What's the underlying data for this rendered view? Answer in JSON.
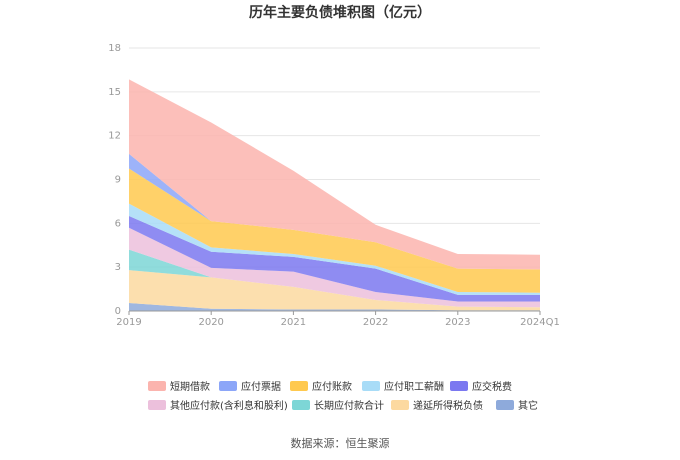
{
  "chart_data": {
    "type": "area",
    "stacked": true,
    "title": "历年主要负债堆积图（亿元）",
    "source_note": "数据来源：恒生聚源",
    "categories": [
      "2019",
      "2020",
      "2021",
      "2022",
      "2023",
      "2024Q1"
    ],
    "ylim": [
      0,
      18
    ],
    "yticks": [
      "0",
      "3",
      "6",
      "9",
      "12",
      "15",
      "18"
    ],
    "grid": true,
    "legend_position": "bottom",
    "series": [
      {
        "name": "其它",
        "color": "#8eaadb",
        "values": [
          0.55,
          0.15,
          0.1,
          0.1,
          0.05,
          0.05
        ]
      },
      {
        "name": "递延所得税负债",
        "color": "#fcd9a0",
        "values": [
          2.25,
          2.15,
          1.55,
          0.65,
          0.25,
          0.2
        ]
      },
      {
        "name": "长期应付款合计",
        "color": "#7dd6d6",
        "values": [
          1.4,
          0.0,
          0.0,
          0.0,
          0.0,
          0.0
        ]
      },
      {
        "name": "其他应付款(含利息和股利)",
        "color": "#ecc0dc",
        "values": [
          1.5,
          0.65,
          1.05,
          0.55,
          0.35,
          0.4
        ]
      },
      {
        "name": "应交税费",
        "color": "#7b78f0",
        "values": [
          0.8,
          1.1,
          1.0,
          1.6,
          0.45,
          0.45
        ]
      },
      {
        "name": "应付职工薪酬",
        "color": "#a8dcf7",
        "values": [
          0.85,
          0.3,
          0.2,
          0.2,
          0.2,
          0.15
        ]
      },
      {
        "name": "应付账款",
        "color": "#ffc94f",
        "values": [
          2.4,
          1.8,
          1.65,
          1.6,
          1.6,
          1.6
        ]
      },
      {
        "name": "应付票据",
        "color": "#8ca6f8",
        "values": [
          1.0,
          0.0,
          0.0,
          0.0,
          0.0,
          0.0
        ]
      },
      {
        "name": "短期借款",
        "color": "#fbb4ae",
        "values": [
          5.1,
          6.75,
          4.05,
          1.2,
          1.0,
          1.0
        ]
      }
    ],
    "legend_order": [
      "短期借款",
      "应付票据",
      "应付账款",
      "应付职工薪酬",
      "应交税费",
      "其他应付款(含利息和股利)",
      "长期应付款合计",
      "递延所得税负债",
      "其它"
    ]
  }
}
